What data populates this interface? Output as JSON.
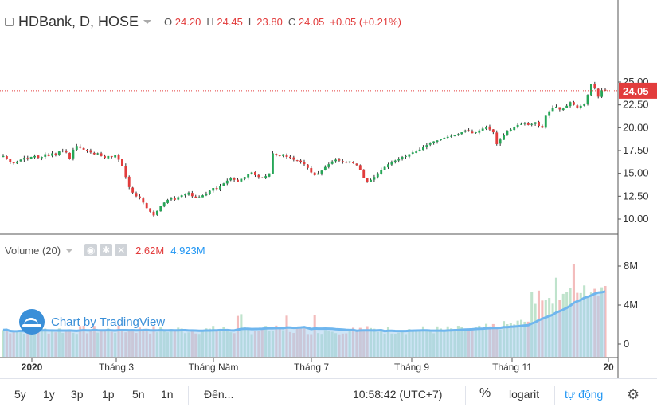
{
  "symbol": {
    "title": "HDBank, D, HOSE"
  },
  "ohlc": {
    "o_label": "O",
    "o_value": "24.20",
    "h_label": "H",
    "h_value": "24.45",
    "l_label": "L",
    "l_value": "23.80",
    "c_label": "C",
    "c_value": "24.05",
    "change": "+0.05 (+0.21%)"
  },
  "price_tag": "24.05",
  "volume_legend": {
    "title": "Volume (20)",
    "value1": "2.62M",
    "value2": "4.923M"
  },
  "watermark": {
    "text": "Chart by TradingView"
  },
  "toolbar": {
    "ranges": [
      "5y",
      "1y",
      "3p",
      "1p",
      "5n",
      "1n"
    ],
    "goto": "Đến...",
    "time": "10:58:42 (UTC+7)",
    "percent": "%",
    "log": "logarit",
    "auto": "tự động"
  },
  "colors": {
    "up": "#26a657",
    "down": "#e23c3c",
    "vol_up": "#bfe3cc",
    "vol_down": "#f3bcbc",
    "vol_bar": "#a8cfee",
    "ma_line": "#6fb6ee",
    "price_line": "#e23c3c"
  },
  "chart_data": {
    "type": "candlestick",
    "price_axis": {
      "ticks": [
        "10.00",
        "12.50",
        "15.00",
        "17.50",
        "20.00",
        "22.50",
        "25.00"
      ],
      "ylim": [
        10,
        25
      ]
    },
    "volume_axis": {
      "ticks": [
        "0",
        "4M",
        "8M"
      ],
      "ylim": [
        0,
        8000000
      ]
    },
    "x_axis": {
      "tick_labels": [
        "2020",
        "Tháng 3",
        "Tháng Năm",
        "Tháng 7",
        "Tháng 9",
        "Tháng 11",
        "20"
      ]
    },
    "close_series": [
      16.9,
      16.6,
      16.2,
      16.1,
      16.3,
      16.5,
      16.7,
      16.6,
      16.8,
      16.9,
      16.7,
      16.8,
      17.1,
      16.9,
      17.2,
      17.0,
      17.4,
      17.5,
      17.3,
      16.6,
      17.6,
      18.0,
      17.8,
      17.6,
      17.5,
      17.3,
      17.1,
      17.2,
      16.9,
      16.7,
      16.9,
      16.8,
      17.0,
      16.5,
      15.8,
      14.6,
      13.5,
      12.9,
      12.5,
      12.3,
      11.8,
      11.2,
      10.8,
      10.4,
      10.9,
      11.4,
      11.8,
      12.1,
      12.3,
      12.1,
      12.4,
      12.6,
      12.7,
      12.9,
      12.5,
      12.3,
      12.4,
      12.6,
      12.8,
      13.1,
      13.4,
      13.3,
      13.6,
      13.9,
      14.2,
      14.5,
      14.3,
      14.1,
      14.4,
      14.6,
      14.9,
      15.1,
      14.8,
      14.6,
      14.5,
      14.7,
      15.0,
      17.2,
      17.0,
      16.9,
      17.1,
      16.8,
      16.7,
      16.5,
      16.4,
      16.2,
      16.0,
      15.6,
      15.1,
      14.8,
      15.0,
      15.3,
      15.7,
      16.0,
      16.3,
      16.5,
      16.4,
      16.3,
      16.2,
      16.3,
      16.1,
      15.9,
      15.4,
      14.5,
      14.1,
      14.3,
      14.6,
      15.0,
      15.4,
      15.7,
      16.0,
      16.2,
      16.4,
      16.6,
      16.8,
      16.9,
      17.1,
      17.3,
      17.4,
      17.6,
      17.9,
      18.1,
      18.3,
      18.5,
      18.6,
      18.8,
      18.9,
      19.0,
      19.1,
      19.2,
      19.3,
      19.5,
      19.7,
      19.6,
      19.4,
      19.5,
      19.7,
      19.9,
      20.1,
      19.8,
      19.5,
      18.2,
      18.7,
      19.2,
      19.6,
      19.8,
      20.1,
      20.3,
      20.4,
      20.5,
      20.3,
      20.4,
      20.6,
      20.2,
      20.0,
      21.3,
      21.8,
      22.2,
      22.3,
      22.0,
      22.1,
      22.4,
      22.8,
      22.5,
      22.2,
      22.4,
      22.6,
      23.6,
      24.8,
      24.3,
      23.4,
      24.1,
      24.05
    ]
  }
}
